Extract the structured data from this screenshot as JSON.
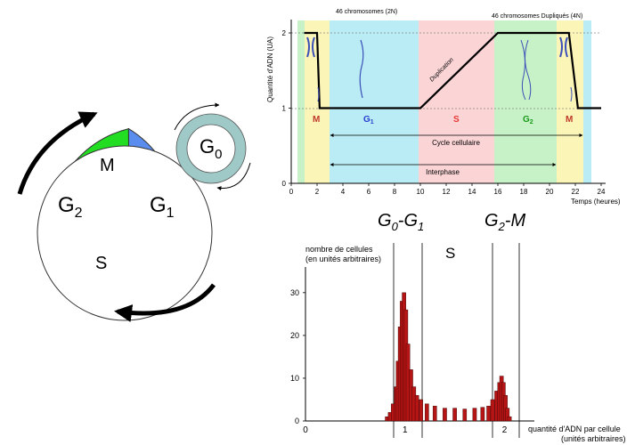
{
  "cycle": {
    "phase_m": "M",
    "phase_g": "G",
    "sub_1": "1",
    "sub_2": "2",
    "phase_s": "S",
    "phase_g0_sub": "0",
    "colors": {
      "m": "#22dd22",
      "g1": "#5b8def",
      "s": "#ee1111",
      "g2": "#f48cc0",
      "g0": "#9fc9c6"
    }
  },
  "top_chart": {
    "ylabel": "Quantité d'ADN (UA)",
    "xlabel": "Temps (heures)",
    "annotation_2n": "46 chromosomes  (2N)",
    "annotation_4n": "46 chromosomes  Dupliqués  (4N)",
    "duplication_label": "Duplication",
    "phase_labels": [
      {
        "text": "M",
        "color": "#c0392b"
      },
      {
        "text": "G",
        "sub": "1",
        "color": "#2a3fd0"
      },
      {
        "text": "S",
        "color": "#e53935"
      },
      {
        "text": "G",
        "sub": "2",
        "color": "#1a9a1a"
      },
      {
        "text": "M",
        "color": "#c0392b"
      }
    ],
    "cycle_label": "Cycle cellulaire",
    "interphase_label": "Interphase",
    "x_ticks": [
      "0",
      "2",
      "4",
      "6",
      "8",
      "10",
      "12",
      "14",
      "16",
      "18",
      "20",
      "22",
      "24"
    ],
    "y_ticks": [
      "0",
      "1",
      "2"
    ]
  },
  "mid_labels": {
    "g0g1": "G",
    "g0g1_s1": "0",
    "g0g1_s2": "1",
    "g2m": "G",
    "g2m_s": "2",
    "g2m_m": "-M",
    "dash": "-",
    "s": "S"
  },
  "chart_data": {
    "type": "line",
    "title": "",
    "xlabel": "Temps (heures)",
    "ylabel": "Quantité d'ADN (UA)",
    "xlim": [
      0,
      24
    ],
    "ylim": [
      0,
      2
    ],
    "x": [
      1,
      2,
      2.2,
      10,
      16,
      21.5,
      22.2,
      24
    ],
    "series": [
      {
        "values": [
          2,
          2,
          1,
          1,
          2,
          2,
          1,
          1
        ]
      }
    ],
    "phases": [
      {
        "name": "M",
        "start": 1.3,
        "end": 2.9
      },
      {
        "name": "G1",
        "start": 2.9,
        "end": 10
      },
      {
        "name": "S",
        "start": 10,
        "end": 16
      },
      {
        "name": "G2",
        "start": 16,
        "end": 21
      },
      {
        "name": "M",
        "start": 21,
        "end": 23
      }
    ]
  },
  "histogram": {
    "ylabel_line1": "nombre de cellules",
    "ylabel_line2": "(en unités arbitraires)",
    "xlabel_line1": "quantité d'ADN par cellule",
    "xlabel_line2": "(unités arbitraires)",
    "x_ticks": [
      "0",
      "1",
      "2"
    ],
    "y_ticks": [
      "0",
      "10",
      "20",
      "30"
    ],
    "ylim": [
      0,
      36
    ],
    "xlim": [
      0,
      2.3
    ],
    "bars": [
      {
        "x": 0.82,
        "y": 1
      },
      {
        "x": 0.85,
        "y": 2
      },
      {
        "x": 0.88,
        "y": 4
      },
      {
        "x": 0.91,
        "y": 8
      },
      {
        "x": 0.93,
        "y": 14
      },
      {
        "x": 0.95,
        "y": 22
      },
      {
        "x": 0.97,
        "y": 28
      },
      {
        "x": 0.99,
        "y": 30
      },
      {
        "x": 1.01,
        "y": 26
      },
      {
        "x": 1.03,
        "y": 18
      },
      {
        "x": 1.06,
        "y": 12
      },
      {
        "x": 1.09,
        "y": 8
      },
      {
        "x": 1.12,
        "y": 6
      },
      {
        "x": 1.16,
        "y": 5
      },
      {
        "x": 1.22,
        "y": 4
      },
      {
        "x": 1.3,
        "y": 3.5
      },
      {
        "x": 1.4,
        "y": 3
      },
      {
        "x": 1.5,
        "y": 3
      },
      {
        "x": 1.6,
        "y": 2.8
      },
      {
        "x": 1.7,
        "y": 3
      },
      {
        "x": 1.78,
        "y": 3.2
      },
      {
        "x": 1.84,
        "y": 3.5
      },
      {
        "x": 1.88,
        "y": 5
      },
      {
        "x": 1.92,
        "y": 7
      },
      {
        "x": 1.95,
        "y": 9
      },
      {
        "x": 1.97,
        "y": 10.5
      },
      {
        "x": 1.99,
        "y": 9
      },
      {
        "x": 2.01,
        "y": 6
      },
      {
        "x": 2.03,
        "y": 3
      },
      {
        "x": 2.05,
        "y": 1
      }
    ]
  }
}
